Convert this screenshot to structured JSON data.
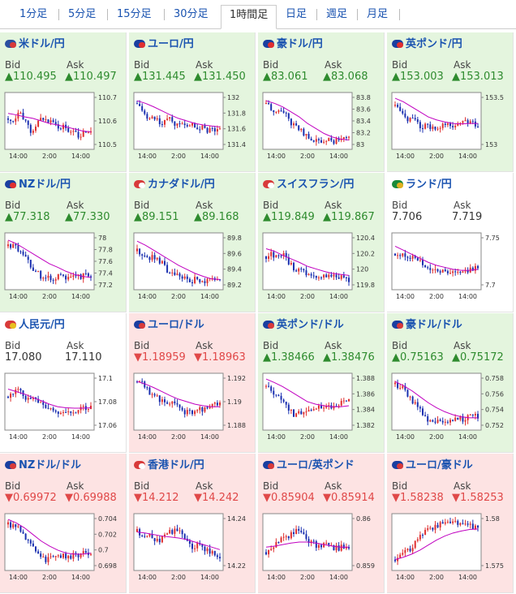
{
  "tabs": [
    {
      "label": "1分足"
    },
    {
      "label": "5分足"
    },
    {
      "label": "15分足"
    },
    {
      "label": "30分足"
    },
    {
      "label": "1時間足",
      "active": true
    },
    {
      "label": "日足"
    },
    {
      "label": "週足"
    },
    {
      "label": "月足"
    }
  ],
  "labels": {
    "bid": "Bid",
    "ask": "Ask"
  },
  "colors": {
    "up": "#2e8b2e",
    "down": "#e04848",
    "bull": "#e03030",
    "bear": "#1a2fb0",
    "ma": "#c000c0",
    "link": "#1a53b0"
  },
  "cards": [
    {
      "title": "米ドル/円",
      "flag_colors": [
        "#2a4fa0",
        "#d83a3a"
      ],
      "trend": "up",
      "bid": "▲110.495",
      "ask": "▲110.497",
      "chart_data": {
        "type": "candlestick",
        "x_ticks": [
          "14:00",
          "2:00",
          "14:00"
        ],
        "y_ticks": [
          "110.7",
          "110.6",
          "110.5"
        ],
        "path": [
          0.45,
          0.55,
          0.35,
          0.5,
          0.7,
          0.6,
          0.4,
          0.5,
          0.55,
          0.65,
          0.6,
          0.7,
          0.75,
          0.8,
          0.7,
          0.72
        ],
        "ma": [
          0.35,
          0.38,
          0.42,
          0.45,
          0.5,
          0.55,
          0.58,
          0.62,
          0.66,
          0.7,
          0.72
        ]
      }
    },
    {
      "title": "ユーロ/円",
      "flag_colors": [
        "#1a3fa0",
        "#e03030"
      ],
      "trend": "up",
      "bid": "▲131.445",
      "ask": "▲131.450",
      "chart_data": {
        "type": "candlestick",
        "x_ticks": [
          "14:00",
          "2:00",
          "14:00"
        ],
        "y_ticks": [
          "132",
          "131.8",
          "131.6",
          "131.4"
        ],
        "path": [
          0.15,
          0.3,
          0.45,
          0.4,
          0.55,
          0.5,
          0.45,
          0.6,
          0.62,
          0.55,
          0.6,
          0.65,
          0.62,
          0.7,
          0.66,
          0.68
        ],
        "ma": [
          0.1,
          0.15,
          0.22,
          0.3,
          0.38,
          0.45,
          0.5,
          0.55,
          0.58,
          0.6,
          0.62
        ]
      }
    },
    {
      "title": "豪ドル/円",
      "flag_colors": [
        "#1a3fa0",
        "#e03030"
      ],
      "trend": "up",
      "bid": "▲83.061",
      "ask": "▲83.068",
      "chart_data": {
        "type": "candlestick",
        "x_ticks": [
          "14:00",
          "2:00",
          "14:00"
        ],
        "y_ticks": [
          "83.8",
          "83.6",
          "83.4",
          "83.2",
          "83"
        ],
        "path": [
          0.15,
          0.25,
          0.35,
          0.3,
          0.45,
          0.6,
          0.65,
          0.75,
          0.82,
          0.88,
          0.9,
          0.88,
          0.92,
          0.9,
          0.88,
          0.86
        ],
        "ma": [
          0.1,
          0.15,
          0.22,
          0.32,
          0.42,
          0.55,
          0.65,
          0.75,
          0.82,
          0.86,
          0.88
        ]
      }
    },
    {
      "title": "英ポンド/円",
      "flag_colors": [
        "#1a3fa0",
        "#e03030"
      ],
      "trend": "up",
      "bid": "▲153.003",
      "ask": "▲153.013",
      "chart_data": {
        "type": "candlestick",
        "x_ticks": [
          "14:00",
          "2:00",
          "14:00"
        ],
        "y_ticks": [
          "153.5",
          "153"
        ],
        "path": [
          0.2,
          0.35,
          0.5,
          0.45,
          0.55,
          0.62,
          0.58,
          0.65,
          0.6,
          0.55,
          0.6,
          0.58,
          0.55,
          0.52,
          0.55,
          0.56
        ],
        "ma": [
          0.05,
          0.12,
          0.22,
          0.32,
          0.42,
          0.48,
          0.52,
          0.55,
          0.56,
          0.55,
          0.55
        ]
      }
    },
    {
      "title": "NZドル/円",
      "flag_colors": [
        "#1a3fa0",
        "#e03030"
      ],
      "trend": "up",
      "bid": "▲77.318",
      "ask": "▲77.330",
      "chart_data": {
        "type": "candlestick",
        "x_ticks": [
          "14:00",
          "2:00",
          "14:00"
        ],
        "y_ticks": [
          "78",
          "77.8",
          "77.6",
          "77.4",
          "77.2"
        ],
        "path": [
          0.2,
          0.15,
          0.3,
          0.45,
          0.55,
          0.7,
          0.8,
          0.82,
          0.85,
          0.8,
          0.82,
          0.8,
          0.78,
          0.8,
          0.76,
          0.78
        ],
        "ma": [
          0.08,
          0.15,
          0.25,
          0.35,
          0.45,
          0.55,
          0.62,
          0.7,
          0.76,
          0.8,
          0.82
        ]
      }
    },
    {
      "title": "カナダドル/円",
      "flag_colors": [
        "#d83a3a",
        "#ffffff"
      ],
      "trend": "up",
      "bid": "▲89.151",
      "ask": "▲89.168",
      "chart_data": {
        "type": "candlestick",
        "x_ticks": [
          "14:00",
          "2:00",
          "14:00"
        ],
        "y_ticks": [
          "89.8",
          "89.6",
          "89.4",
          "89.2"
        ],
        "path": [
          0.3,
          0.35,
          0.45,
          0.42,
          0.5,
          0.6,
          0.75,
          0.72,
          0.8,
          0.85,
          0.88,
          0.85,
          0.9,
          0.86,
          0.88,
          0.84
        ],
        "ma": [
          0.1,
          0.18,
          0.28,
          0.38,
          0.48,
          0.58,
          0.66,
          0.74,
          0.8,
          0.85,
          0.86
        ]
      }
    },
    {
      "title": "スイスフラン/円",
      "flag_colors": [
        "#d83a3a",
        "#ffffff"
      ],
      "trend": "up",
      "bid": "▲119.849",
      "ask": "▲119.867",
      "chart_data": {
        "type": "candlestick",
        "x_ticks": [
          "14:00",
          "2:00",
          "14:00"
        ],
        "y_ticks": [
          "120.4",
          "120.2",
          "120",
          "119.8"
        ],
        "path": [
          0.4,
          0.35,
          0.45,
          0.3,
          0.55,
          0.62,
          0.7,
          0.72,
          0.75,
          0.78,
          0.8,
          0.82,
          0.78,
          0.85,
          0.8,
          0.9
        ],
        "ma": [
          0.25,
          0.3,
          0.38,
          0.45,
          0.52,
          0.6,
          0.65,
          0.7,
          0.74,
          0.76,
          0.78
        ]
      }
    },
    {
      "title": "ランド/円",
      "flag_colors": [
        "#1a8a3a",
        "#e0b020"
      ],
      "trend": "flat",
      "bid": "7.706",
      "ask": "7.719",
      "chart_data": {
        "type": "candlestick",
        "x_ticks": [
          "14:00",
          "2:00",
          "14:00"
        ],
        "y_ticks": [
          "7.75",
          "7.7"
        ],
        "path": [
          0.35,
          0.4,
          0.38,
          0.42,
          0.5,
          0.55,
          0.62,
          0.68,
          0.7,
          0.72,
          0.74,
          0.72,
          0.7,
          0.68,
          0.66,
          0.64
        ],
        "ma": [
          0.2,
          0.28,
          0.36,
          0.44,
          0.52,
          0.58,
          0.62,
          0.66,
          0.68,
          0.68,
          0.66
        ]
      }
    },
    {
      "title": "人民元/円",
      "flag_colors": [
        "#d83a3a",
        "#e8c020"
      ],
      "trend": "flat",
      "bid": "17.080",
      "ask": "17.110",
      "chart_data": {
        "type": "candlestick",
        "x_ticks": [
          "14:00",
          "2:00",
          "14:00"
        ],
        "y_ticks": [
          "17.1",
          "17.08",
          "17.06"
        ],
        "path": [
          0.4,
          0.3,
          0.25,
          0.4,
          0.5,
          0.45,
          0.55,
          0.6,
          0.65,
          0.72,
          0.75,
          0.7,
          0.68,
          0.65,
          0.62,
          0.6
        ],
        "ma": [
          0.25,
          0.3,
          0.35,
          0.42,
          0.48,
          0.55,
          0.6,
          0.62,
          0.63,
          0.63,
          0.62
        ]
      }
    },
    {
      "title": "ユーロ/ドル",
      "flag_colors": [
        "#1a3fa0",
        "#d83a3a"
      ],
      "trend": "down",
      "bid": "▼1.18959",
      "ask": "▼1.18963",
      "chart_data": {
        "type": "candlestick",
        "x_ticks": [
          "14:00",
          "2:00",
          "14:00"
        ],
        "y_ticks": [
          "1.192",
          "1.19",
          "1.188"
        ],
        "path": [
          0.1,
          0.15,
          0.3,
          0.35,
          0.45,
          0.55,
          0.5,
          0.6,
          0.65,
          0.72,
          0.7,
          0.68,
          0.65,
          0.6,
          0.58,
          0.55
        ],
        "ma": [
          0.1,
          0.15,
          0.22,
          0.3,
          0.38,
          0.45,
          0.5,
          0.55,
          0.58,
          0.6,
          0.6
        ]
      }
    },
    {
      "title": "英ポンド/ドル",
      "flag_colors": [
        "#1a3fa0",
        "#d83a3a"
      ],
      "trend": "up",
      "bid": "▲1.38466",
      "ask": "▲1.38476",
      "chart_data": {
        "type": "candlestick",
        "x_ticks": [
          "14:00",
          "2:00",
          "14:00"
        ],
        "y_ticks": [
          "1.388",
          "1.386",
          "1.384",
          "1.382"
        ],
        "path": [
          0.2,
          0.3,
          0.35,
          0.5,
          0.65,
          0.75,
          0.7,
          0.72,
          0.68,
          0.65,
          0.62,
          0.6,
          0.58,
          0.55,
          0.52,
          0.5
        ],
        "ma": [
          0.05,
          0.12,
          0.2,
          0.3,
          0.4,
          0.5,
          0.55,
          0.58,
          0.6,
          0.6,
          0.58
        ]
      }
    },
    {
      "title": "豪ドル/ドル",
      "flag_colors": [
        "#1a3fa0",
        "#d83a3a"
      ],
      "trend": "up",
      "bid": "▲0.75163",
      "ask": "▲0.75172",
      "chart_data": {
        "type": "candlestick",
        "x_ticks": [
          "14:00",
          "2:00",
          "14:00"
        ],
        "y_ticks": [
          "0.758",
          "0.756",
          "0.754",
          "0.752"
        ],
        "path": [
          0.15,
          0.2,
          0.3,
          0.45,
          0.6,
          0.75,
          0.85,
          0.88,
          0.9,
          0.86,
          0.88,
          0.84,
          0.85,
          0.82,
          0.8,
          0.78
        ],
        "ma": [
          0.1,
          0.18,
          0.28,
          0.4,
          0.52,
          0.62,
          0.7,
          0.76,
          0.8,
          0.82,
          0.82
        ]
      }
    },
    {
      "title": "NZドル/ドル",
      "flag_colors": [
        "#1a3fa0",
        "#d83a3a"
      ],
      "trend": "down",
      "bid": "▼0.69972",
      "ask": "▼0.69988",
      "chart_data": {
        "type": "candlestick",
        "x_ticks": [
          "14:00",
          "2:00",
          "14:00"
        ],
        "y_ticks": [
          "0.704",
          "0.702",
          "0.7",
          "0.698"
        ],
        "path": [
          0.15,
          0.2,
          0.25,
          0.4,
          0.55,
          0.7,
          0.8,
          0.85,
          0.82,
          0.8,
          0.78,
          0.8,
          0.76,
          0.75,
          0.72,
          0.7
        ],
        "ma": [
          0.05,
          0.12,
          0.22,
          0.35,
          0.48,
          0.58,
          0.66,
          0.72,
          0.74,
          0.74,
          0.72
        ]
      }
    },
    {
      "title": "香港ドル/円",
      "flag_colors": [
        "#d83a3a",
        "#ffffff"
      ],
      "trend": "down",
      "bid": "▼14.212",
      "ask": "▼14.242",
      "chart_data": {
        "type": "candlestick",
        "x_ticks": [
          "14:00",
          "2:00",
          "14:00"
        ],
        "y_ticks": [
          "14.24",
          "14.22"
        ],
        "path": [
          0.3,
          0.4,
          0.35,
          0.5,
          0.45,
          0.4,
          0.3,
          0.25,
          0.35,
          0.45,
          0.6,
          0.55,
          0.65,
          0.7,
          0.75,
          0.8
        ],
        "ma": [
          0.3,
          0.32,
          0.35,
          0.38,
          0.4,
          0.42,
          0.45,
          0.5,
          0.55,
          0.6,
          0.65
        ]
      }
    },
    {
      "title": "ユーロ/英ポンド",
      "flag_colors": [
        "#1a3fa0",
        "#d83a3a"
      ],
      "trend": "down",
      "bid": "▼0.85904",
      "ask": "▼0.85914",
      "chart_data": {
        "type": "candlestick",
        "x_ticks": [
          "14:00",
          "2:00",
          "14:00"
        ],
        "y_ticks": [
          "0.86",
          "0.859"
        ],
        "path": [
          0.7,
          0.6,
          0.5,
          0.45,
          0.4,
          0.3,
          0.25,
          0.35,
          0.5,
          0.55,
          0.6,
          0.55,
          0.6,
          0.62,
          0.6,
          0.62
        ],
        "ma": [
          0.6,
          0.58,
          0.55,
          0.52,
          0.5,
          0.5,
          0.52,
          0.55,
          0.58,
          0.6,
          0.6
        ]
      }
    },
    {
      "title": "ユーロ/豪ドル",
      "flag_colors": [
        "#1a3fa0",
        "#d83a3a"
      ],
      "trend": "down",
      "bid": "▼1.58238",
      "ask": "▼1.58253",
      "chart_data": {
        "type": "candlestick",
        "x_ticks": [
          "14:00",
          "2:00",
          "14:00"
        ],
        "y_ticks": [
          "1.58",
          "1.575"
        ],
        "path": [
          0.85,
          0.8,
          0.7,
          0.6,
          0.45,
          0.35,
          0.25,
          0.2,
          0.15,
          0.12,
          0.15,
          0.12,
          0.15,
          0.18,
          0.2,
          0.22
        ],
        "ma": [
          0.85,
          0.8,
          0.74,
          0.66,
          0.56,
          0.46,
          0.38,
          0.32,
          0.28,
          0.25,
          0.24
        ]
      }
    }
  ]
}
